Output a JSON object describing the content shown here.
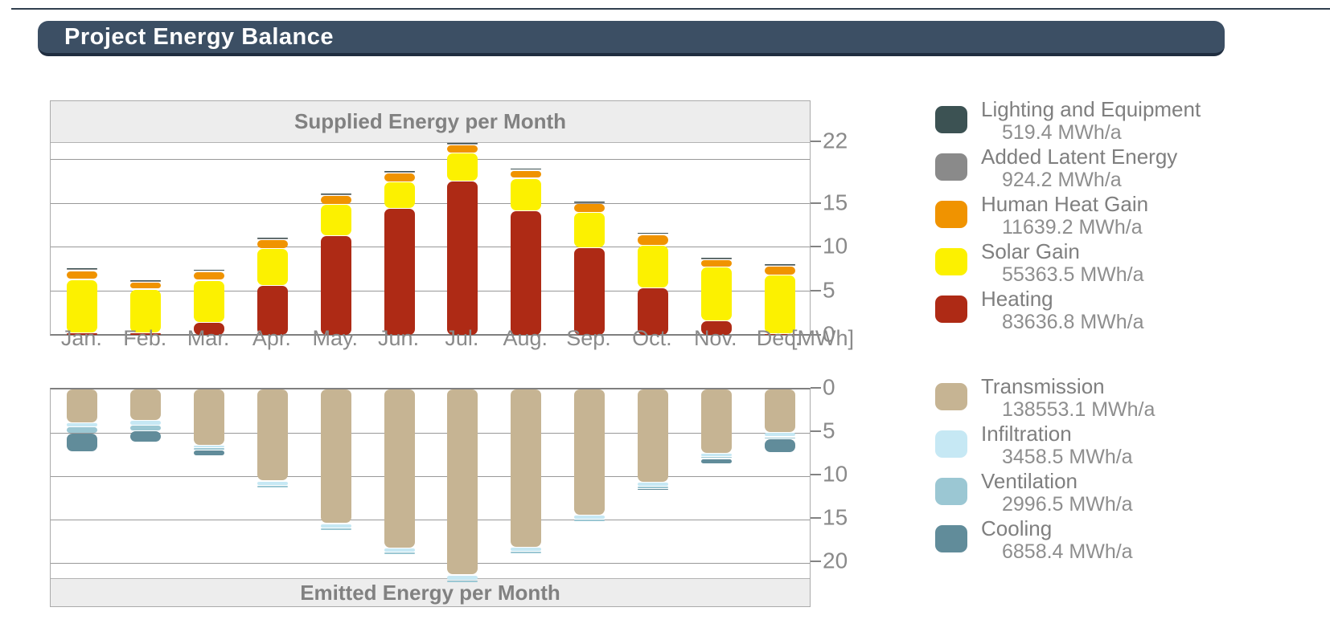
{
  "page": {
    "title": "Project Energy Balance"
  },
  "charts": {
    "unit_label": "[MWh]"
  },
  "chart_data": [
    {
      "type": "bar",
      "stacked": true,
      "direction": "up",
      "title": "Supplied Energy per Month",
      "categories": [
        "Jan.",
        "Feb.",
        "Mar.",
        "Apr.",
        "May.",
        "Jun.",
        "Jul.",
        "Aug.",
        "Sep.",
        "Oct.",
        "Nov.",
        "Dec."
      ],
      "series": [
        {
          "name": "Heating",
          "color": "#ae2a15",
          "values": [
            0.3,
            0.3,
            1.5,
            5.7,
            11.4,
            14.5,
            17.6,
            14.2,
            10.0,
            5.4,
            1.7,
            0.2
          ]
        },
        {
          "name": "Solar Gain",
          "color": "#fcf100",
          "values": [
            6.1,
            5.0,
            4.8,
            4.2,
            3.5,
            3.0,
            3.2,
            3.7,
            4.0,
            4.9,
            6.1,
            6.7
          ]
        },
        {
          "name": "Human Heat Gain",
          "color": "#f09300",
          "values": [
            1.0,
            0.8,
            1.0,
            1.0,
            1.0,
            1.0,
            0.9,
            0.9,
            1.0,
            1.2,
            0.85,
            1.0
          ]
        },
        {
          "name": "Added Latent Energy",
          "color": "#8a8a8a",
          "values": [
            0.08,
            0.08,
            0.08,
            0.08,
            0.08,
            0.08,
            0.08,
            0.08,
            0.08,
            0.08,
            0.08,
            0.08
          ]
        },
        {
          "name": "Lighting and Equipment",
          "color": "#3c5253",
          "values": [
            0.2,
            0.15,
            0.2,
            0.2,
            0.2,
            0.2,
            0.2,
            0.2,
            0.2,
            0.2,
            0.2,
            0.2
          ]
        }
      ],
      "ylabel": "[MWh]",
      "ylim": [
        0,
        22
      ],
      "yticks": [
        22,
        15,
        10,
        5,
        0
      ],
      "gridlines": [
        5,
        10,
        15,
        20
      ],
      "axis_side": "right",
      "legend_position": "right"
    },
    {
      "type": "bar",
      "stacked": true,
      "direction": "down",
      "title": "Emitted Energy per Month",
      "categories": [
        "Jan.",
        "Feb.",
        "Mar.",
        "Apr.",
        "May.",
        "Jun.",
        "Jul.",
        "Aug.",
        "Sep.",
        "Oct.",
        "Nov.",
        "Dec."
      ],
      "series": [
        {
          "name": "Transmission",
          "color": "#c6b493",
          "values": [
            3.9,
            3.6,
            6.5,
            10.6,
            15.5,
            18.3,
            21.4,
            18.2,
            14.5,
            10.7,
            7.4,
            5.0
          ]
        },
        {
          "name": "Infiltration",
          "color": "#c6e8f4",
          "values": [
            0.45,
            0.6,
            0.25,
            0.5,
            0.5,
            0.5,
            0.6,
            0.5,
            0.5,
            0.5,
            0.4,
            0.5
          ]
        },
        {
          "name": "Ventilation",
          "color": "#9bc7d3",
          "values": [
            0.75,
            0.6,
            0.25,
            0.3,
            0.3,
            0.25,
            0.3,
            0.3,
            0.3,
            0.3,
            0.2,
            0.25
          ]
        },
        {
          "name": "Cooling",
          "color": "#618c9a",
          "values": [
            2.1,
            1.3,
            0.7,
            0.0,
            0.0,
            0.0,
            0.0,
            0.0,
            0.0,
            0.15,
            0.6,
            1.55
          ]
        }
      ],
      "ylabel": "[MWh]",
      "ylim": [
        0,
        22
      ],
      "yticks": [
        0,
        5,
        10,
        15,
        20
      ],
      "gridlines": [
        5,
        10,
        15,
        20
      ],
      "axis_side": "right",
      "legend_position": "right"
    }
  ],
  "legend": {
    "supplied": [
      {
        "label": "Lighting and Equipment",
        "value": "519.4 MWh/a",
        "color": "#3c5253"
      },
      {
        "label": "Added Latent Energy",
        "value": "924.2 MWh/a",
        "color": "#8a8a8a"
      },
      {
        "label": "Human Heat Gain",
        "value": "11639.2 MWh/a",
        "color": "#f09300"
      },
      {
        "label": "Solar Gain",
        "value": "55363.5 MWh/a",
        "color": "#fcf100"
      },
      {
        "label": "Heating",
        "value": "83636.8 MWh/a",
        "color": "#ae2a15"
      }
    ],
    "emitted": [
      {
        "label": "Transmission",
        "value": "138553.1 MWh/a",
        "color": "#c6b493"
      },
      {
        "label": "Infiltration",
        "value": "3458.5 MWh/a",
        "color": "#c6e8f4"
      },
      {
        "label": "Ventilation",
        "value": "2996.5 MWh/a",
        "color": "#9bc7d3"
      },
      {
        "label": "Cooling",
        "value": "6858.4 MWh/a",
        "color": "#618c9a"
      }
    ]
  }
}
